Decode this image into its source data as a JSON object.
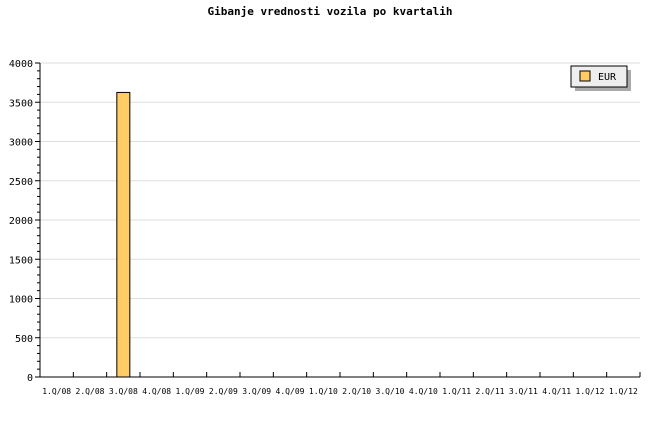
{
  "chart_data": {
    "type": "bar",
    "title": "Gibanje vrednosti vozila po kvartalih",
    "categories": [
      "1.Q/08",
      "2.Q/08",
      "3.Q/08",
      "4.Q/08",
      "1.Q/09",
      "2.Q/09",
      "3.Q/09",
      "4.Q/09",
      "1.Q/10",
      "2.Q/10",
      "3.Q/10",
      "4.Q/10",
      "1.Q/11",
      "2.Q/11",
      "3.Q/11",
      "4.Q/11",
      "1.Q/12",
      "1.Q/12"
    ],
    "series": [
      {
        "name": "EUR",
        "color": "#ffcc66",
        "values": [
          0,
          0,
          3625,
          0,
          0,
          0,
          0,
          0,
          0,
          0,
          0,
          0,
          0,
          0,
          0,
          0,
          0,
          0
        ]
      }
    ],
    "yticks": [
      0,
      500,
      1000,
      1500,
      2000,
      2500,
      3000,
      3500,
      4000
    ],
    "ylim": [
      0,
      4000
    ],
    "grid": true,
    "legend_position": "top-right"
  }
}
